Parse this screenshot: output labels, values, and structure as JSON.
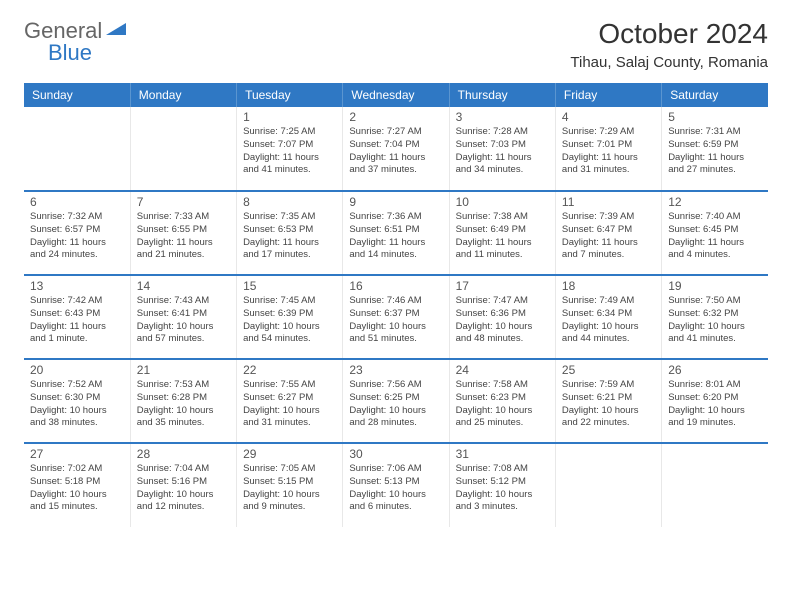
{
  "logo": {
    "part1": "General",
    "part2": "Blue"
  },
  "title": "October 2024",
  "location": "Tihau, Salaj County, Romania",
  "colors": {
    "header_bg": "#2f78c4",
    "header_text": "#ffffff",
    "row_divider": "#2f78c4",
    "cell_divider": "#e8e8e8",
    "text": "#333333",
    "logo_gray": "#666666",
    "logo_blue": "#2f78c4"
  },
  "weekdays": [
    "Sunday",
    "Monday",
    "Tuesday",
    "Wednesday",
    "Thursday",
    "Friday",
    "Saturday"
  ],
  "weeks": [
    [
      null,
      null,
      {
        "n": "1",
        "sr": "7:25 AM",
        "ss": "7:07 PM",
        "dl": "11 hours and 41 minutes."
      },
      {
        "n": "2",
        "sr": "7:27 AM",
        "ss": "7:04 PM",
        "dl": "11 hours and 37 minutes."
      },
      {
        "n": "3",
        "sr": "7:28 AM",
        "ss": "7:03 PM",
        "dl": "11 hours and 34 minutes."
      },
      {
        "n": "4",
        "sr": "7:29 AM",
        "ss": "7:01 PM",
        "dl": "11 hours and 31 minutes."
      },
      {
        "n": "5",
        "sr": "7:31 AM",
        "ss": "6:59 PM",
        "dl": "11 hours and 27 minutes."
      }
    ],
    [
      {
        "n": "6",
        "sr": "7:32 AM",
        "ss": "6:57 PM",
        "dl": "11 hours and 24 minutes."
      },
      {
        "n": "7",
        "sr": "7:33 AM",
        "ss": "6:55 PM",
        "dl": "11 hours and 21 minutes."
      },
      {
        "n": "8",
        "sr": "7:35 AM",
        "ss": "6:53 PM",
        "dl": "11 hours and 17 minutes."
      },
      {
        "n": "9",
        "sr": "7:36 AM",
        "ss": "6:51 PM",
        "dl": "11 hours and 14 minutes."
      },
      {
        "n": "10",
        "sr": "7:38 AM",
        "ss": "6:49 PM",
        "dl": "11 hours and 11 minutes."
      },
      {
        "n": "11",
        "sr": "7:39 AM",
        "ss": "6:47 PM",
        "dl": "11 hours and 7 minutes."
      },
      {
        "n": "12",
        "sr": "7:40 AM",
        "ss": "6:45 PM",
        "dl": "11 hours and 4 minutes."
      }
    ],
    [
      {
        "n": "13",
        "sr": "7:42 AM",
        "ss": "6:43 PM",
        "dl": "11 hours and 1 minute."
      },
      {
        "n": "14",
        "sr": "7:43 AM",
        "ss": "6:41 PM",
        "dl": "10 hours and 57 minutes."
      },
      {
        "n": "15",
        "sr": "7:45 AM",
        "ss": "6:39 PM",
        "dl": "10 hours and 54 minutes."
      },
      {
        "n": "16",
        "sr": "7:46 AM",
        "ss": "6:37 PM",
        "dl": "10 hours and 51 minutes."
      },
      {
        "n": "17",
        "sr": "7:47 AM",
        "ss": "6:36 PM",
        "dl": "10 hours and 48 minutes."
      },
      {
        "n": "18",
        "sr": "7:49 AM",
        "ss": "6:34 PM",
        "dl": "10 hours and 44 minutes."
      },
      {
        "n": "19",
        "sr": "7:50 AM",
        "ss": "6:32 PM",
        "dl": "10 hours and 41 minutes."
      }
    ],
    [
      {
        "n": "20",
        "sr": "7:52 AM",
        "ss": "6:30 PM",
        "dl": "10 hours and 38 minutes."
      },
      {
        "n": "21",
        "sr": "7:53 AM",
        "ss": "6:28 PM",
        "dl": "10 hours and 35 minutes."
      },
      {
        "n": "22",
        "sr": "7:55 AM",
        "ss": "6:27 PM",
        "dl": "10 hours and 31 minutes."
      },
      {
        "n": "23",
        "sr": "7:56 AM",
        "ss": "6:25 PM",
        "dl": "10 hours and 28 minutes."
      },
      {
        "n": "24",
        "sr": "7:58 AM",
        "ss": "6:23 PM",
        "dl": "10 hours and 25 minutes."
      },
      {
        "n": "25",
        "sr": "7:59 AM",
        "ss": "6:21 PM",
        "dl": "10 hours and 22 minutes."
      },
      {
        "n": "26",
        "sr": "8:01 AM",
        "ss": "6:20 PM",
        "dl": "10 hours and 19 minutes."
      }
    ],
    [
      {
        "n": "27",
        "sr": "7:02 AM",
        "ss": "5:18 PM",
        "dl": "10 hours and 15 minutes."
      },
      {
        "n": "28",
        "sr": "7:04 AM",
        "ss": "5:16 PM",
        "dl": "10 hours and 12 minutes."
      },
      {
        "n": "29",
        "sr": "7:05 AM",
        "ss": "5:15 PM",
        "dl": "10 hours and 9 minutes."
      },
      {
        "n": "30",
        "sr": "7:06 AM",
        "ss": "5:13 PM",
        "dl": "10 hours and 6 minutes."
      },
      {
        "n": "31",
        "sr": "7:08 AM",
        "ss": "5:12 PM",
        "dl": "10 hours and 3 minutes."
      },
      null,
      null
    ]
  ],
  "labels": {
    "sunrise": "Sunrise:",
    "sunset": "Sunset:",
    "daylight": "Daylight:"
  }
}
